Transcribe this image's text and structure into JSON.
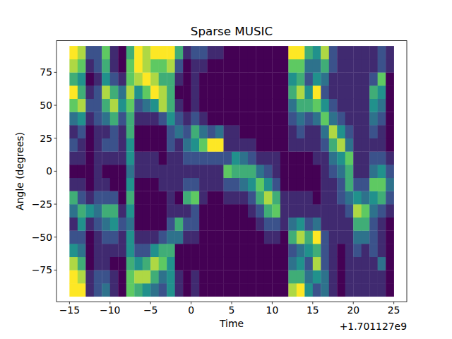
{
  "chart_data": {
    "type": "heatmap",
    "title": "Sparse MUSIC",
    "x_label": "Time",
    "y_label": "Angle (degrees)",
    "x_offset_label": "+1.701127e9",
    "xlim": [
      -16.6,
      26.6
    ],
    "ylim": [
      -99,
      99
    ],
    "xticks": [
      {
        "value": -15,
        "label": "−15"
      },
      {
        "value": -10,
        "label": "−10"
      },
      {
        "value": -5,
        "label": "−5"
      },
      0,
      5,
      10,
      15,
      20,
      25
    ],
    "yticks": [
      {
        "value": -75,
        "label": "−75"
      },
      {
        "value": -50,
        "label": "−50"
      },
      {
        "value": -25,
        "label": "−25"
      },
      0,
      25,
      50,
      75
    ],
    "x": [
      -14.5,
      -13.5,
      -12.5,
      -11.5,
      -10.5,
      -9.5,
      -8.5,
      -7.5,
      -6.5,
      -5.5,
      -4.5,
      -3.5,
      -2.5,
      -1.5,
      -0.5,
      0.5,
      1.5,
      2.5,
      3.5,
      4.5,
      5.5,
      6.5,
      7.5,
      8.5,
      9.5,
      10.5,
      11.5,
      12.5,
      13.5,
      14.5,
      15.5,
      16.5,
      17.5,
      18.5,
      19.5,
      20.5,
      21.5,
      22.5,
      23.5,
      24.5
    ],
    "y": [
      -90,
      -80,
      -70,
      -60,
      -50,
      -40,
      -30,
      -20,
      -10,
      0,
      10,
      20,
      30,
      40,
      50,
      60,
      70,
      80,
      90
    ],
    "cells": [
      [
        9,
        9,
        8,
        5,
        3,
        2,
        4,
        6,
        2,
        1,
        2,
        3,
        2,
        4,
        7,
        9,
        6,
        8,
        9
      ],
      [
        9,
        8,
        6,
        4,
        3,
        5,
        6,
        3,
        2,
        1,
        2,
        2,
        3,
        5,
        8,
        6,
        5,
        7,
        8
      ],
      [
        2,
        2,
        1,
        1,
        1,
        2,
        5,
        2,
        1,
        1,
        1,
        1,
        1,
        2,
        3,
        2,
        1,
        2,
        3
      ],
      [
        3,
        3,
        2,
        2,
        2,
        3,
        4,
        3,
        2,
        2,
        2,
        2,
        2,
        3,
        3,
        3,
        2,
        3,
        3
      ],
      [
        4,
        3,
        2,
        2,
        3,
        4,
        6,
        3,
        2,
        1,
        2,
        3,
        2,
        4,
        6,
        8,
        5,
        6,
        7
      ],
      [
        2,
        2,
        1,
        2,
        3,
        5,
        6,
        3,
        1,
        1,
        2,
        3,
        3,
        6,
        8,
        6,
        3,
        2,
        2
      ],
      [
        1,
        1,
        1,
        2,
        2,
        3,
        2,
        1,
        1,
        1,
        2,
        2,
        2,
        3,
        5,
        4,
        2,
        1,
        1
      ],
      [
        7,
        7,
        6,
        5,
        5,
        4,
        5,
        6,
        5,
        4,
        5,
        5,
        6,
        6,
        7,
        8,
        7,
        7,
        6
      ],
      [
        6,
        8,
        5,
        3,
        2,
        1,
        1,
        1,
        1,
        2,
        2,
        1,
        1,
        2,
        3,
        5,
        8,
        9,
        9
      ],
      [
        5,
        8,
        6,
        3,
        2,
        1,
        1,
        1,
        1,
        2,
        2,
        1,
        1,
        2,
        4,
        7,
        9,
        8,
        8
      ],
      [
        4,
        6,
        8,
        5,
        2,
        1,
        1,
        1,
        1,
        2,
        2,
        1,
        1,
        2,
        5,
        9,
        8,
        7,
        9
      ],
      [
        3,
        4,
        7,
        6,
        3,
        1,
        1,
        1,
        2,
        2,
        1,
        1,
        1,
        3,
        8,
        8,
        6,
        7,
        9
      ],
      [
        5,
        5,
        5,
        6,
        4,
        3,
        2,
        2,
        2,
        2,
        2,
        3,
        3,
        5,
        6,
        6,
        6,
        8,
        9
      ],
      [
        2,
        2,
        1,
        1,
        4,
        6,
        2,
        1,
        2,
        2,
        2,
        2,
        4,
        3,
        2,
        1,
        2,
        3,
        6
      ],
      [
        1,
        1,
        1,
        1,
        2,
        3,
        2,
        6,
        3,
        2,
        3,
        4,
        3,
        2,
        1,
        1,
        1,
        1,
        2
      ],
      [
        2,
        2,
        1,
        1,
        2,
        3,
        3,
        7,
        3,
        2,
        3,
        5,
        6,
        3,
        2,
        2,
        2,
        2,
        3
      ],
      [
        1,
        1,
        1,
        1,
        1,
        1,
        1,
        2,
        2,
        2,
        3,
        7,
        4,
        2,
        1,
        1,
        1,
        2,
        3
      ],
      [
        1,
        1,
        1,
        1,
        1,
        1,
        1,
        1,
        2,
        2,
        3,
        9,
        3,
        1,
        1,
        1,
        1,
        1,
        2
      ],
      [
        1,
        1,
        1,
        1,
        1,
        1,
        1,
        1,
        2,
        2,
        3,
        9,
        4,
        1,
        1,
        1,
        1,
        1,
        2
      ],
      [
        1,
        1,
        1,
        1,
        1,
        1,
        1,
        2,
        3,
        7,
        3,
        2,
        2,
        1,
        1,
        1,
        1,
        1,
        1
      ],
      [
        1,
        1,
        1,
        1,
        1,
        1,
        1,
        2,
        3,
        6,
        5,
        2,
        2,
        1,
        1,
        1,
        1,
        1,
        1
      ],
      [
        1,
        1,
        1,
        1,
        1,
        1,
        1,
        2,
        4,
        6,
        4,
        2,
        1,
        1,
        1,
        1,
        1,
        1,
        1
      ],
      [
        1,
        1,
        1,
        1,
        1,
        1,
        2,
        3,
        5,
        6,
        3,
        2,
        1,
        1,
        1,
        1,
        1,
        1,
        1
      ],
      [
        1,
        1,
        1,
        1,
        1,
        2,
        3,
        6,
        7,
        4,
        2,
        1,
        1,
        1,
        1,
        1,
        1,
        1,
        1
      ],
      [
        1,
        1,
        1,
        1,
        2,
        3,
        6,
        8,
        5,
        3,
        2,
        1,
        1,
        1,
        1,
        1,
        1,
        1,
        1
      ],
      [
        1,
        1,
        1,
        1,
        2,
        3,
        7,
        6,
        3,
        2,
        2,
        1,
        1,
        1,
        1,
        1,
        1,
        1,
        1
      ],
      [
        1,
        1,
        1,
        1,
        1,
        2,
        2,
        2,
        1,
        1,
        1,
        1,
        1,
        1,
        1,
        1,
        1,
        1,
        1
      ],
      [
        8,
        6,
        4,
        3,
        6,
        4,
        2,
        2,
        1,
        1,
        1,
        2,
        2,
        3,
        4,
        6,
        5,
        7,
        9
      ],
      [
        9,
        6,
        5,
        4,
        8,
        5,
        2,
        2,
        1,
        1,
        1,
        2,
        3,
        4,
        6,
        8,
        6,
        7,
        9
      ],
      [
        5,
        4,
        3,
        5,
        6,
        3,
        2,
        2,
        1,
        1,
        1,
        2,
        2,
        3,
        6,
        5,
        3,
        4,
        6
      ],
      [
        3,
        5,
        8,
        6,
        9,
        4,
        2,
        1,
        1,
        1,
        2,
        2,
        2,
        4,
        7,
        9,
        5,
        4,
        5
      ],
      [
        4,
        4,
        3,
        3,
        3,
        2,
        2,
        2,
        2,
        2,
        2,
        3,
        4,
        7,
        5,
        3,
        4,
        6,
        8
      ],
      [
        2,
        2,
        2,
        2,
        2,
        2,
        2,
        2,
        2,
        3,
        4,
        6,
        8,
        4,
        3,
        2,
        2,
        3,
        3
      ],
      [
        1,
        1,
        1,
        1,
        2,
        2,
        2,
        3,
        3,
        4,
        5,
        8,
        5,
        3,
        2,
        2,
        2,
        2,
        2
      ],
      [
        2,
        2,
        2,
        2,
        2,
        2,
        3,
        4,
        6,
        6,
        7,
        4,
        3,
        2,
        2,
        2,
        2,
        2,
        2
      ],
      [
        2,
        2,
        2,
        3,
        4,
        6,
        8,
        5,
        3,
        2,
        2,
        2,
        2,
        2,
        2,
        2,
        2,
        2,
        2
      ],
      [
        2,
        2,
        2,
        2,
        4,
        6,
        7,
        4,
        3,
        2,
        2,
        2,
        2,
        2,
        2,
        2,
        2,
        2,
        2
      ],
      [
        2,
        2,
        2,
        3,
        3,
        3,
        4,
        5,
        7,
        4,
        3,
        2,
        3,
        4,
        5,
        6,
        3,
        2,
        2
      ],
      [
        2,
        2,
        4,
        2,
        2,
        2,
        3,
        6,
        7,
        5,
        3,
        2,
        2,
        3,
        4,
        5,
        7,
        3,
        3
      ],
      [
        1,
        1,
        1,
        1,
        1,
        1,
        2,
        3,
        4,
        3,
        2,
        1,
        1,
        1,
        1,
        1,
        1,
        2,
        2
      ]
    ]
  }
}
